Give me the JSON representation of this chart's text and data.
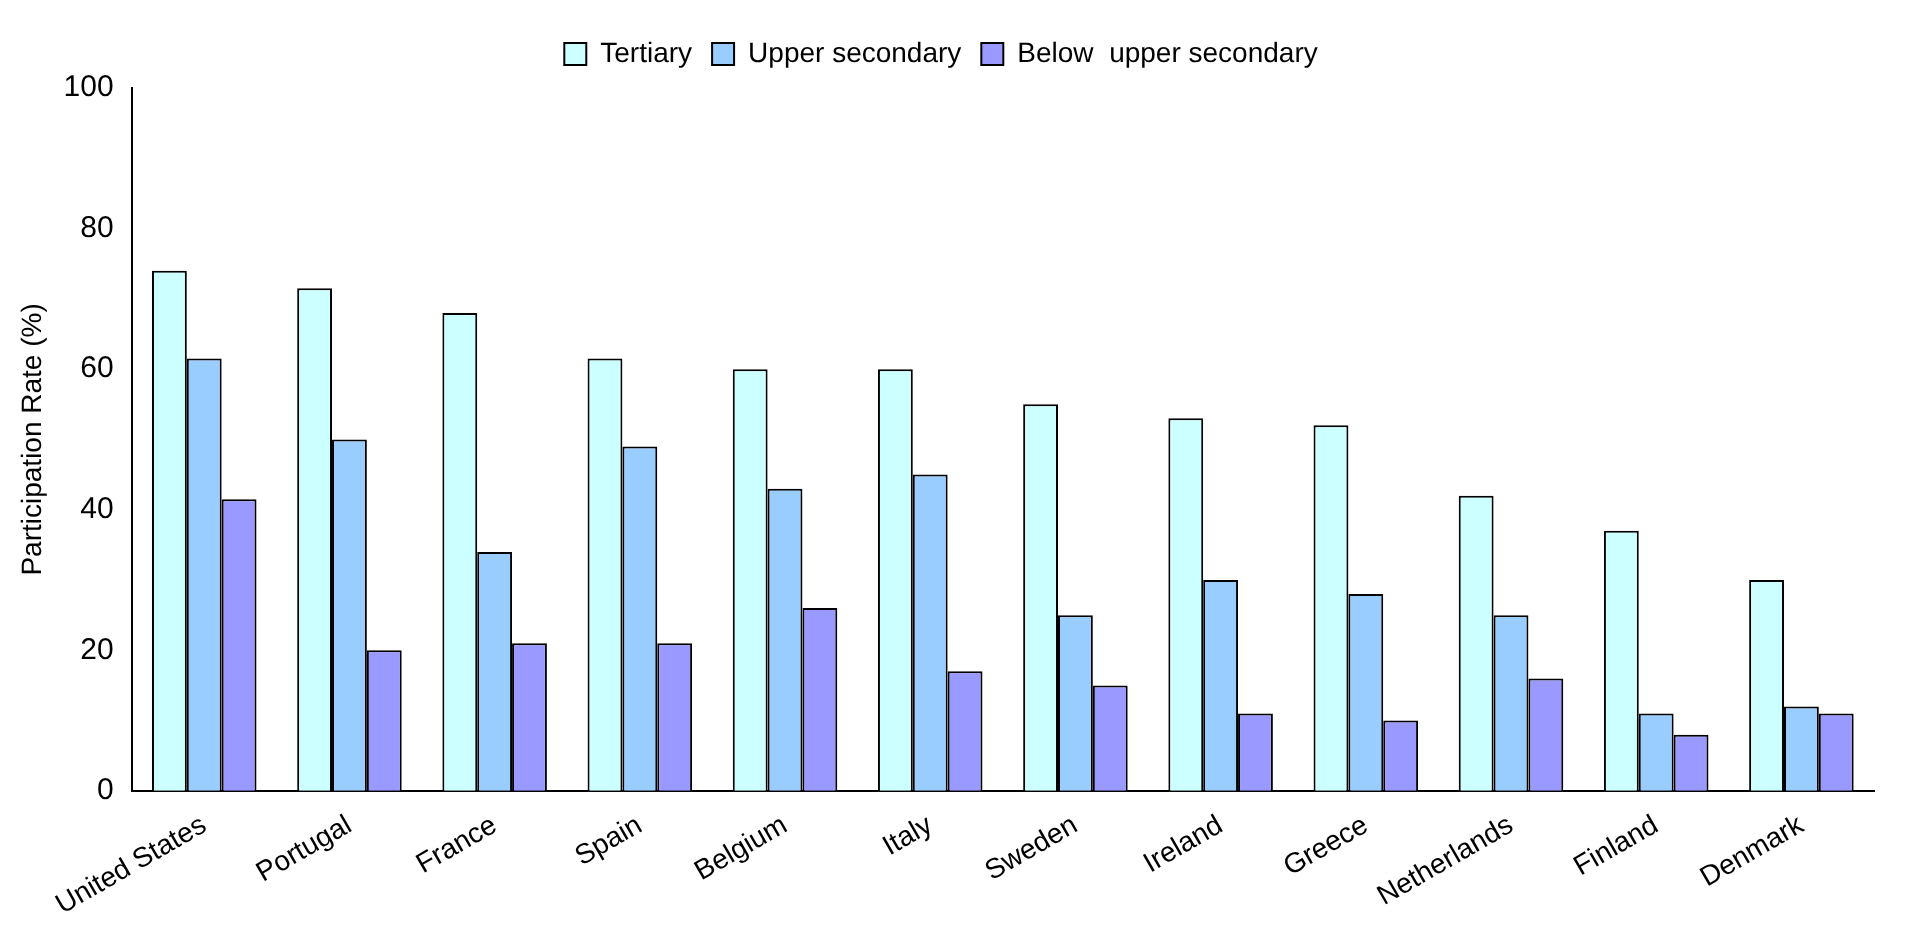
{
  "chart_data": {
    "type": "bar",
    "ylabel": "Participation Rate (%)",
    "categories": [
      "United States",
      "Portugal",
      "France",
      "Spain",
      "Belgium",
      "Italy",
      "Sweden",
      "Ireland",
      "Greece",
      "Netherlands",
      "Finland",
      "Denmark"
    ],
    "series": [
      {
        "name": "Tertiary",
        "color": "#ccffff",
        "values": [
          74,
          71.5,
          68,
          61.5,
          60,
          60,
          55,
          53,
          52,
          42,
          37,
          30
        ]
      },
      {
        "name": "Upper secondary",
        "color": "#99ccff",
        "values": [
          61.5,
          50,
          34,
          49,
          43,
          45,
          25,
          30,
          28,
          25,
          11,
          12
        ]
      },
      {
        "name": "Below  upper secondary",
        "color": "#9999ff",
        "values": [
          41.5,
          20,
          21,
          21,
          26,
          17,
          15,
          11,
          10,
          16,
          8,
          11
        ]
      }
    ],
    "ylim": [
      0,
      100
    ],
    "yticks": [
      0,
      20,
      40,
      60,
      80,
      100
    ],
    "grid": false,
    "legend": "top"
  }
}
